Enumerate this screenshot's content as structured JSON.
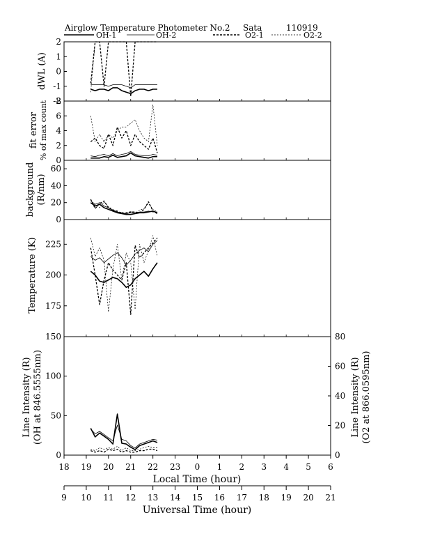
{
  "header": {
    "title": "Airglow Temperature Photometer No.2",
    "station": "Sata",
    "date_code": "110919"
  },
  "legend": [
    {
      "name": "OH-1",
      "style": "solid-thick"
    },
    {
      "name": "OH-2",
      "style": "solid-thin"
    },
    {
      "name": "O2-1",
      "style": "dash-thick"
    },
    {
      "name": "O2-2",
      "style": "dash-thin"
    }
  ],
  "chart_data": {
    "type": "line",
    "x_local": {
      "label": "Local Time (hour)",
      "ticks": [
        "18",
        "19",
        "20",
        "21",
        "22",
        "23",
        "0",
        "1",
        "2",
        "3",
        "4",
        "5",
        "6"
      ]
    },
    "x_universal": {
      "label": "Universal Time (hour)",
      "ticks": [
        "9",
        "10",
        "11",
        "12",
        "13",
        "14",
        "15",
        "16",
        "17",
        "18",
        "19",
        "20",
        "21"
      ]
    },
    "x": [
      19.2,
      19.4,
      19.6,
      19.8,
      20.0,
      20.2,
      20.4,
      20.6,
      20.8,
      21.0,
      21.2,
      21.4,
      21.6,
      21.8,
      22.0,
      22.2
    ],
    "panels": [
      {
        "id": "dwl",
        "ylabel": [
          "dWL (A)"
        ],
        "ylim": [
          -2,
          2
        ],
        "yticks": [
          "2",
          "1",
          "0",
          "-1",
          "-2"
        ],
        "series": [
          {
            "name": "OH-1",
            "values": [
              -1.2,
              -1.3,
              -1.2,
              -1.2,
              -1.3,
              -1.1,
              -1.1,
              -1.3,
              -1.4,
              -1.5,
              -1.3,
              -1.2,
              -1.2,
              -1.3,
              -1.2,
              -1.2
            ]
          },
          {
            "name": "OH-2",
            "values": [
              -0.9,
              -0.9,
              -0.9,
              -0.9,
              -1.0,
              -0.9,
              -0.9,
              -0.9,
              -1.0,
              -1.1,
              -0.9,
              -0.9,
              -0.9,
              -0.9,
              -0.9,
              -0.9
            ]
          },
          {
            "name": "O2-1",
            "values": [
              -0.8,
              2.0,
              2.0,
              -1.0,
              2.0,
              2.0,
              2.0,
              2.0,
              2.0,
              -1.7,
              2.0,
              2.0,
              2.0,
              2.0,
              2.0,
              2.0
            ]
          },
          {
            "name": "O2-2",
            "values": [
              -1.4,
              2.0,
              2.0,
              2.0,
              2.0,
              2.0,
              2.0,
              2.0,
              2.0,
              2.0,
              2.0,
              2.0,
              2.0,
              2.0,
              2.0,
              2.0
            ]
          }
        ]
      },
      {
        "id": "fit",
        "ylabel": [
          "fit error",
          "% of max count"
        ],
        "ylim": [
          0,
          8
        ],
        "yticks": [
          "8",
          "6",
          "4",
          "2",
          "0"
        ],
        "series": [
          {
            "name": "OH-1",
            "values": [
              0.3,
              0.3,
              0.3,
              0.5,
              0.4,
              0.7,
              0.4,
              0.5,
              0.6,
              1.0,
              0.6,
              0.5,
              0.4,
              0.3,
              0.5,
              0.5
            ]
          },
          {
            "name": "OH-2",
            "values": [
              0.6,
              0.5,
              0.7,
              0.8,
              0.6,
              0.9,
              0.6,
              0.8,
              0.9,
              1.2,
              0.8,
              0.7,
              0.6,
              0.6,
              0.8,
              0.7
            ]
          },
          {
            "name": "O2-1",
            "values": [
              2.5,
              3.0,
              2.0,
              1.6,
              3.5,
              2.0,
              4.5,
              3.0,
              4.0,
              2.0,
              3.5,
              2.5,
              2.0,
              1.5,
              3.0,
              1.0
            ]
          },
          {
            "name": "O2-2",
            "values": [
              6.0,
              2.5,
              3.5,
              2.5,
              3.5,
              3.0,
              4.0,
              4.5,
              4.5,
              5.0,
              5.5,
              4.0,
              3.0,
              2.5,
              7.5,
              2.0
            ]
          }
        ]
      },
      {
        "id": "bg",
        "ylabel": [
          "background",
          "(R/nm)"
        ],
        "ylim": [
          0,
          70
        ],
        "yticks": [
          "60",
          "40",
          "20",
          "0"
        ],
        "series": [
          {
            "name": "OH-1",
            "values": [
              20,
              16,
              18,
              14,
              12,
              10,
              8,
              7,
              6,
              6,
              7,
              8,
              8,
              9,
              10,
              8
            ]
          },
          {
            "name": "OH-2",
            "values": [
              22,
              18,
              20,
              16,
              14,
              11,
              9,
              8,
              7,
              8,
              8,
              9,
              9,
              10,
              9,
              9
            ]
          },
          {
            "name": "O2-1",
            "values": [
              24,
              13,
              19,
              22,
              14,
              11,
              10,
              7,
              8,
              9,
              9,
              8,
              12,
              21,
              10,
              7
            ]
          },
          {
            "name": "O2-2",
            "values": [
              23,
              17,
              14,
              21,
              15,
              12,
              8,
              9,
              6,
              10,
              7,
              11,
              13,
              19,
              12,
              9
            ]
          }
        ]
      },
      {
        "id": "temp",
        "ylabel": [
          "Temperature (K)"
        ],
        "ylim": [
          150,
          245
        ],
        "yticks": [
          "225",
          "200",
          "175"
        ],
        "series": [
          {
            "name": "OH-1",
            "values": [
              203,
              200,
              195,
              194,
              196,
              198,
              197,
              194,
              190,
              192,
              197,
              200,
              203,
              199,
              205,
              210
            ]
          },
          {
            "name": "OH-2",
            "values": [
              215,
              212,
              214,
              210,
              213,
              216,
              218,
              214,
              208,
              212,
              217,
              220,
              222,
              219,
              225,
              228
            ]
          },
          {
            "name": "O2-1",
            "values": [
              222,
              200,
              176,
              196,
              210,
              204,
              200,
              196,
              210,
              168,
              224,
              214,
              218,
              222,
              226,
              230
            ]
          },
          {
            "name": "O2-2",
            "values": [
              230,
              215,
              222,
              212,
              170,
              205,
              225,
              196,
              218,
              210,
              172,
              225,
              210,
              220,
              232,
              215
            ]
          }
        ]
      },
      {
        "id": "int",
        "ylabel": [
          "Line Intensity (R)",
          "(OH at 846.5555nm)"
        ],
        "ylabel_right": [
          "Line Intensity (R)",
          "(O2 at 866.0595nm)"
        ],
        "ylim": [
          0,
          150
        ],
        "ylim_right": [
          0,
          80
        ],
        "yticks": [
          "150",
          "100",
          "50",
          "0"
        ],
        "yticks_right": [
          "80",
          "60",
          "40",
          "20",
          "0"
        ],
        "series": [
          {
            "name": "OH-1",
            "axis": "left",
            "values": [
              34,
              23,
              28,
              24,
              20,
              14,
              52,
              15,
              14,
              10,
              7,
              12,
              14,
              16,
              18,
              16
            ]
          },
          {
            "name": "OH-2",
            "axis": "left",
            "values": [
              33,
              27,
              30,
              26,
              22,
              18,
              38,
              20,
              18,
              12,
              9,
              14,
              16,
              18,
              20,
              19
            ]
          },
          {
            "name": "O2-1",
            "axis": "right",
            "values": [
              3,
              2,
              3,
              2,
              4,
              3,
              4,
              2,
              3,
              2,
              2,
              3,
              3,
              4,
              4,
              3
            ]
          },
          {
            "name": "O2-2",
            "axis": "right",
            "values": [
              4,
              3,
              5,
              4,
              5,
              4,
              6,
              3,
              5,
              3,
              3,
              4,
              5,
              6,
              5,
              5
            ]
          }
        ]
      }
    ]
  }
}
